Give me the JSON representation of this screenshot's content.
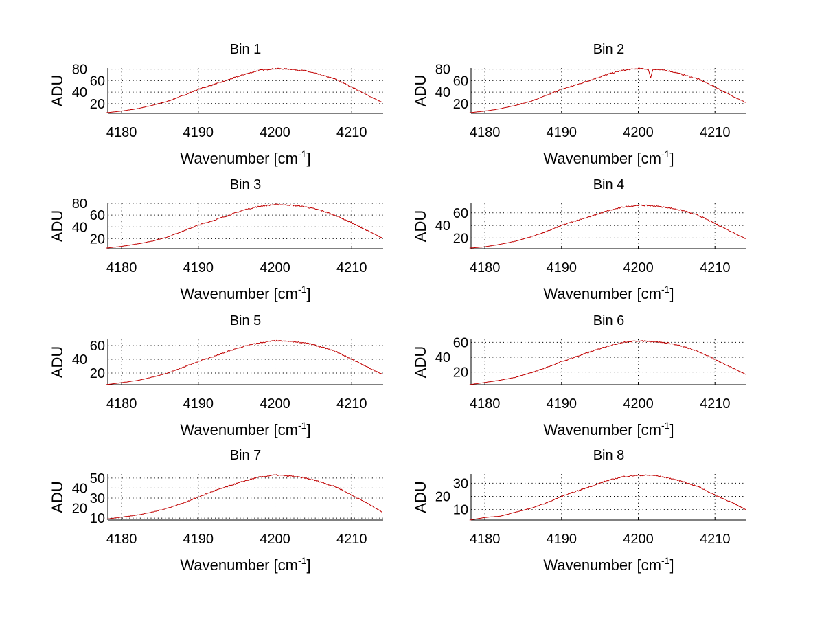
{
  "chart_data": [
    {
      "type": "line",
      "title": "Bin 1",
      "xlabel": "Wavenumber [cm",
      "xlabel_sup": "-1",
      "xlabel_end": "]",
      "ylabel": "ADU",
      "xlim": [
        4178.2,
        4214.1
      ],
      "ylim": [
        3,
        82
      ],
      "xticks": [
        4180,
        4190,
        4200,
        4210
      ],
      "yticks": [
        20,
        40,
        60,
        80
      ],
      "grid": true,
      "color": "#c00000",
      "x": [
        4178,
        4180,
        4182,
        4184,
        4186,
        4188,
        4190,
        4192,
        4194,
        4196,
        4198,
        4200,
        4202,
        4204,
        4206,
        4208,
        4210,
        4212,
        4214
      ],
      "y": [
        4,
        7,
        11,
        17,
        24,
        34,
        45,
        53,
        62,
        71,
        78,
        81,
        80,
        77,
        70,
        62,
        49,
        35,
        22
      ]
    },
    {
      "type": "line",
      "title": "Bin 2",
      "xlabel": "Wavenumber [cm",
      "xlabel_sup": "-1",
      "xlabel_end": "]",
      "ylabel": "ADU",
      "xlim": [
        4178.2,
        4214.1
      ],
      "ylim": [
        3,
        82
      ],
      "xticks": [
        4180,
        4190,
        4200,
        4210
      ],
      "yticks": [
        20,
        40,
        60,
        80
      ],
      "grid": true,
      "color": "#c00000",
      "x": [
        4178,
        4180,
        4182,
        4184,
        4186,
        4188,
        4190,
        4192,
        4194,
        4196,
        4198,
        4200,
        4201.3,
        4201.6,
        4201.9,
        4202,
        4204,
        4206,
        4208,
        4210,
        4212,
        4214
      ],
      "y": [
        4,
        7,
        11,
        17,
        24,
        34,
        45,
        53,
        62,
        71,
        78,
        81,
        80,
        65,
        79,
        80,
        77,
        70,
        62,
        49,
        35,
        22
      ]
    },
    {
      "type": "line",
      "title": "Bin 3",
      "xlabel": "Wavenumber [cm",
      "xlabel_sup": "-1",
      "xlabel_end": "]",
      "ylabel": "ADU",
      "xlim": [
        4178.2,
        4214.1
      ],
      "ylim": [
        3,
        80
      ],
      "xticks": [
        4180,
        4190,
        4200,
        4210
      ],
      "yticks": [
        20,
        40,
        60,
        80
      ],
      "grid": true,
      "color": "#c00000",
      "x": [
        4178,
        4180,
        4182,
        4184,
        4186,
        4188,
        4190,
        4192,
        4194,
        4196,
        4198,
        4200,
        4202,
        4204,
        4206,
        4208,
        4210,
        4212,
        4214
      ],
      "y": [
        4,
        7,
        11,
        16,
        23,
        33,
        43,
        51,
        60,
        69,
        75,
        78,
        77,
        74,
        68,
        59,
        47,
        34,
        21
      ]
    },
    {
      "type": "line",
      "title": "Bin 4",
      "xlabel": "Wavenumber [cm",
      "xlabel_sup": "-1",
      "xlabel_end": "]",
      "ylabel": "ADU",
      "xlim": [
        4178.2,
        4214.1
      ],
      "ylim": [
        3,
        75
      ],
      "xticks": [
        4180,
        4190,
        4200,
        4210
      ],
      "yticks": [
        20,
        40,
        60
      ],
      "grid": true,
      "color": "#c00000",
      "x": [
        4178,
        4180,
        4182,
        4184,
        4186,
        4188,
        4190,
        4192,
        4194,
        4196,
        4198,
        4200,
        4202,
        4204,
        4206,
        4208,
        4210,
        4212,
        4214
      ],
      "y": [
        4,
        6,
        10,
        15,
        22,
        30,
        40,
        48,
        55,
        63,
        69,
        72,
        71,
        68,
        63,
        55,
        43,
        31,
        19
      ]
    },
    {
      "type": "line",
      "title": "Bin 5",
      "xlabel": "Wavenumber [cm",
      "xlabel_sup": "-1",
      "xlabel_end": "]",
      "ylabel": "ADU",
      "xlim": [
        4178.2,
        4214.1
      ],
      "ylim": [
        3,
        69
      ],
      "xticks": [
        4180,
        4190,
        4200,
        4210
      ],
      "yticks": [
        20,
        40,
        60
      ],
      "grid": true,
      "color": "#c00000",
      "x": [
        4178,
        4180,
        4182,
        4184,
        4186,
        4188,
        4190,
        4192,
        4194,
        4196,
        4198,
        4200,
        4202,
        4204,
        4206,
        4208,
        4210,
        4212,
        4214
      ],
      "y": [
        3,
        6,
        9,
        14,
        20,
        28,
        37,
        44,
        52,
        59,
        64,
        67,
        66,
        64,
        58,
        51,
        40,
        29,
        18
      ]
    },
    {
      "type": "line",
      "title": "Bin 6",
      "xlabel": "Wavenumber [cm",
      "xlabel_sup": "-1",
      "xlabel_end": "]",
      "ylabel": "ADU",
      "xlim": [
        4178.2,
        4214.1
      ],
      "ylim": [
        3,
        64
      ],
      "xticks": [
        4180,
        4190,
        4200,
        4210
      ],
      "yticks": [
        20,
        40,
        60
      ],
      "grid": true,
      "color": "#c00000",
      "x": [
        4178,
        4180,
        4182,
        4184,
        4186,
        4188,
        4190,
        4192,
        4194,
        4196,
        4198,
        4200,
        4202,
        4204,
        4206,
        4208,
        4210,
        4212,
        4214
      ],
      "y": [
        3,
        6,
        9,
        13,
        19,
        26,
        34,
        41,
        48,
        55,
        60,
        62,
        61,
        59,
        54,
        47,
        37,
        27,
        17
      ]
    },
    {
      "type": "line",
      "title": "Bin 7",
      "xlabel": "Wavenumber [cm",
      "xlabel_sup": "-1",
      "xlabel_end": "]",
      "ylabel": "ADU",
      "xlim": [
        4178.2,
        4214.1
      ],
      "ylim": [
        8,
        54
      ],
      "xticks": [
        4180,
        4190,
        4200,
        4210
      ],
      "yticks": [
        10,
        20,
        30,
        40,
        50
      ],
      "grid": true,
      "color": "#c00000",
      "x": [
        4178,
        4180,
        4182,
        4184,
        4186,
        4188,
        4190,
        4192,
        4194,
        4196,
        4198,
        4200,
        4202,
        4204,
        4206,
        4208,
        4210,
        4212,
        4214
      ],
      "y": [
        9,
        11,
        13,
        16,
        20,
        25,
        31,
        37,
        42,
        47,
        51,
        53,
        52,
        50,
        46,
        41,
        33,
        25,
        16
      ]
    },
    {
      "type": "line",
      "title": "Bin 8",
      "xlabel": "Wavenumber [cm",
      "xlabel_sup": "-1",
      "xlabel_end": "]",
      "ylabel": "ADU",
      "xlim": [
        4178.2,
        4214.1
      ],
      "ylim": [
        2,
        37
      ],
      "xticks": [
        4180,
        4190,
        4200,
        4210
      ],
      "yticks": [
        10,
        20,
        30
      ],
      "grid": true,
      "color": "#c00000",
      "x": [
        4178,
        4180,
        4182,
        4184,
        4186,
        4188,
        4190,
        4192,
        4194,
        4196,
        4198,
        4200,
        4202,
        4204,
        4206,
        4208,
        4210,
        4212,
        4214
      ],
      "y": [
        2,
        4,
        5,
        8,
        11,
        15,
        20,
        24,
        28,
        32,
        35,
        36,
        36,
        34,
        31,
        27,
        21,
        16,
        10
      ]
    }
  ]
}
